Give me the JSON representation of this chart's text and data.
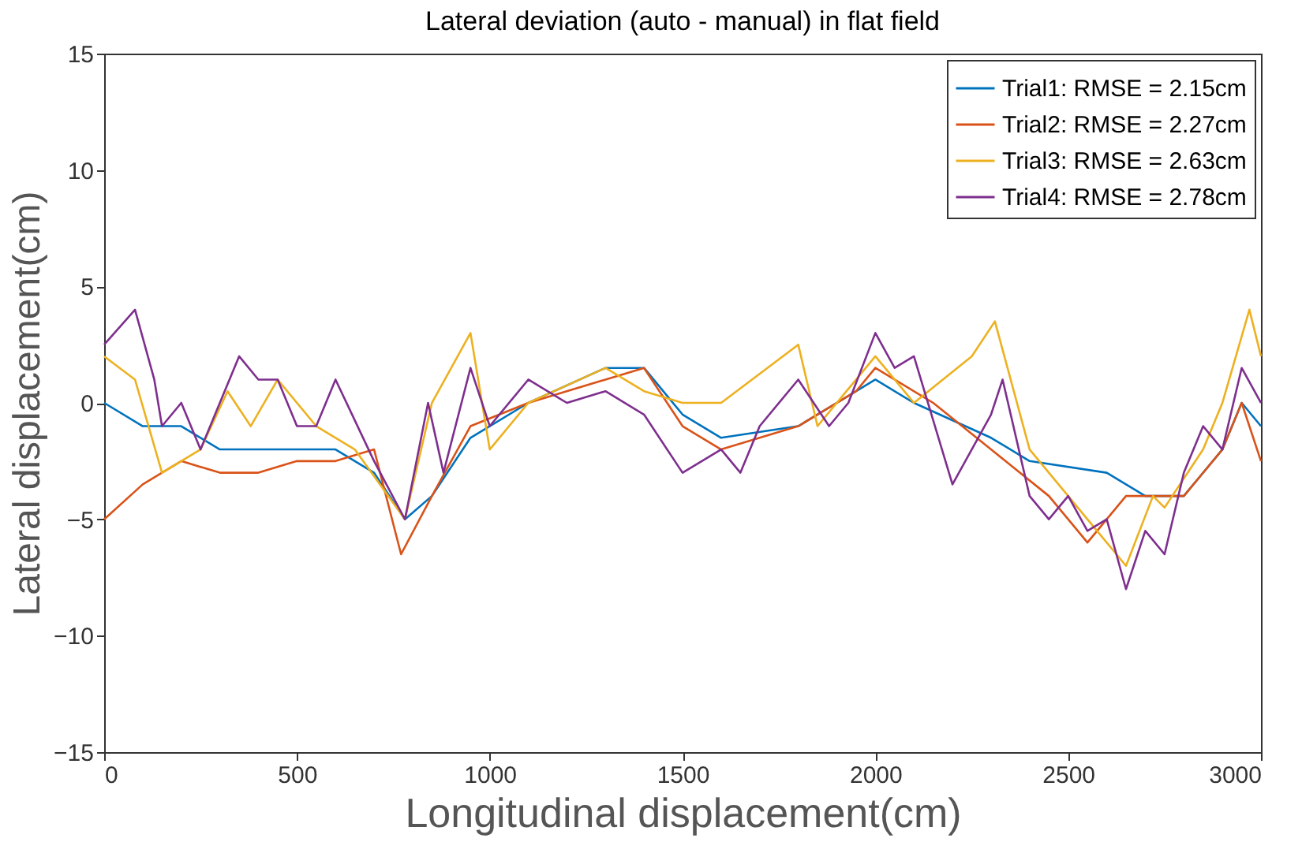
{
  "chart_data": {
    "type": "line",
    "title": "Lateral deviation (auto - manual) in flat field",
    "xlabel": "Longitudinal displacement(cm)",
    "ylabel": "Lateral displacement(cm)",
    "xlim": [
      0,
      3000
    ],
    "ylim": [
      -15,
      15
    ],
    "xticks": [
      0,
      500,
      1000,
      1500,
      2000,
      2500,
      3000
    ],
    "yticks": [
      -15,
      -10,
      -5,
      0,
      5,
      10,
      15
    ],
    "grid": false,
    "legend": "top right",
    "line_style": "solid",
    "marker": "none",
    "series": [
      {
        "name": "Trial1: RMSE = 2.15cm",
        "color": "#0072bd",
        "x": [
          0,
          100,
          200,
          300,
          400,
          500,
          600,
          650,
          700,
          780,
          850,
          950,
          1100,
          1300,
          1400,
          1500,
          1600,
          1800,
          1900,
          2000,
          2100,
          2300,
          2400,
          2600,
          2700,
          2800,
          2900,
          2950,
          3000
        ],
        "values": [
          0,
          -1,
          -1,
          -2,
          -2,
          -2,
          -2,
          -2.5,
          -3,
          -5,
          -4,
          -1.5,
          0,
          1.5,
          1.5,
          -0.5,
          -1.5,
          -1,
          0,
          1,
          0,
          -1.5,
          -2.5,
          -3,
          -4,
          -4,
          -2,
          0,
          -1
        ]
      },
      {
        "name": "Trial2: RMSE = 2.27cm",
        "color": "#d95319",
        "x": [
          0,
          100,
          200,
          300,
          400,
          500,
          600,
          700,
          770,
          850,
          950,
          1100,
          1300,
          1400,
          1500,
          1600,
          1800,
          1950,
          2000,
          2150,
          2300,
          2450,
          2550,
          2650,
          2800,
          2900,
          2950,
          3000
        ],
        "values": [
          -5,
          -3.5,
          -2.5,
          -3,
          -3,
          -2.5,
          -2.5,
          -2,
          -6.5,
          -4,
          -1,
          0,
          1,
          1.5,
          -1,
          -2,
          -1,
          0.5,
          1.5,
          0,
          -2,
          -4,
          -6,
          -4,
          -4,
          -2,
          0,
          -2.5
        ]
      },
      {
        "name": "Trial3: RMSE = 2.63cm",
        "color": "#edb120",
        "x": [
          0,
          80,
          150,
          250,
          320,
          380,
          450,
          550,
          650,
          780,
          850,
          950,
          1000,
          1100,
          1300,
          1400,
          1500,
          1600,
          1800,
          1850,
          2000,
          2100,
          2250,
          2310,
          2400,
          2550,
          2650,
          2720,
          2750,
          2850,
          2900,
          2970,
          3000
        ],
        "values": [
          2,
          1,
          -3,
          -2,
          0.5,
          -1,
          1,
          -1,
          -2,
          -5,
          0,
          3,
          -2,
          0,
          1.5,
          0.5,
          0,
          0,
          2.5,
          -1,
          2,
          0,
          2,
          3.5,
          -2,
          -5,
          -7,
          -4,
          -4.5,
          -2,
          0,
          4,
          2
        ]
      },
      {
        "name": "Trial4: RMSE = 2.78cm",
        "color": "#7e2f8e",
        "x": [
          0,
          80,
          130,
          150,
          200,
          250,
          350,
          400,
          450,
          500,
          550,
          600,
          700,
          780,
          840,
          880,
          950,
          1000,
          1100,
          1200,
          1300,
          1400,
          1500,
          1600,
          1650,
          1700,
          1800,
          1880,
          1930,
          2000,
          2050,
          2100,
          2200,
          2300,
          2330,
          2400,
          2450,
          2500,
          2550,
          2600,
          2650,
          2700,
          2750,
          2800,
          2850,
          2900,
          2950,
          3000
        ],
        "values": [
          2.5,
          4,
          1,
          -1,
          0,
          -2,
          2,
          1,
          1,
          -1,
          -1,
          1,
          -2.5,
          -5,
          0,
          -3,
          1.5,
          -1,
          1,
          0,
          0.5,
          -0.5,
          -3,
          -2,
          -3,
          -1,
          1,
          -1,
          0,
          3,
          1.5,
          2,
          -3.5,
          -0.5,
          1,
          -4,
          -5,
          -4,
          -5.5,
          -5,
          -8,
          -5.5,
          -6.5,
          -3,
          -1,
          -2,
          1.5,
          0
        ]
      }
    ]
  }
}
